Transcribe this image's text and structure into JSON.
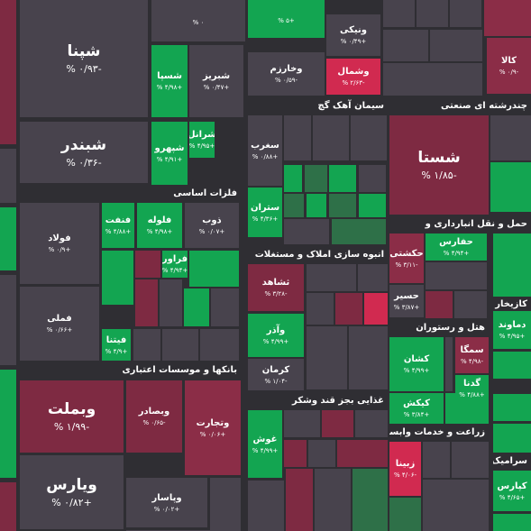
{
  "sectors": [
    {
      "title": "سیمان آهک گچ"
    },
    {
      "title": "چندرشته ای صنعتی"
    },
    {
      "title": "فلزات اساسی"
    },
    {
      "title": "انبوه سازی املاک و مستغلات"
    },
    {
      "title": "بانکها و موسسات اعتباری"
    },
    {
      "title": "غذایی بجز قند وشکر"
    },
    {
      "title": "حمل و نقل انبارداری و"
    },
    {
      "title": "هتل و رستوران"
    },
    {
      "title": "زراعت و خدمات وابسته"
    },
    {
      "title": "کازیخار و"
    },
    {
      "title": "سرامیک"
    }
  ],
  "tiles": [
    {
      "label": "شپنا",
      "change": "-۰/۹۳ %",
      "color": "#48434d"
    },
    {
      "label": "",
      "change": "۰ %",
      "color": "#48434d"
    },
    {
      "label": "",
      "change": "+۵ %",
      "color": "#13a551"
    },
    {
      "label": "ونیکی",
      "change": "+۰/۴۹ %",
      "color": "#48434d"
    },
    {
      "label": "وخارزم",
      "change": "-۰/۵۹ %",
      "color": "#48434d"
    },
    {
      "label": "وشمال",
      "change": "-۲/۶۳ %",
      "color": "#d12a50"
    },
    {
      "label": "کالا",
      "change": "-۰/۹ %",
      "color": "#8b2d47"
    },
    {
      "label": "شبندر",
      "change": "-۰/۳۶ %",
      "color": "#48434d"
    },
    {
      "label": "شسپا",
      "change": "+۴/۹۸ %",
      "color": "#13a551"
    },
    {
      "label": "شبریز",
      "change": "+۰/۴۷ %",
      "color": "#48434d"
    },
    {
      "label": "شپهرو",
      "change": "+۴/۹۱ %",
      "color": "#13a551"
    },
    {
      "label": "شرانل",
      "change": "+۴/۹۵ %",
      "color": "#13a551"
    },
    {
      "label": "سغرب",
      "change": "+۰/۸۸ %",
      "color": "#48434d"
    },
    {
      "label": "ستران",
      "change": "+۴/۳۶ %",
      "color": "#13a551"
    },
    {
      "label": "شستا",
      "change": "-۱/۸۵ %",
      "color": "#7e2a42"
    },
    {
      "label": "فولاد",
      "change": "+۰/۹ %",
      "color": "#48434d"
    },
    {
      "label": "فملی",
      "change": "+۰/۶۶ %",
      "color": "#48434d"
    },
    {
      "label": "فنفت",
      "change": "+۴/۸۸ %",
      "color": "#13a551"
    },
    {
      "label": "فلوله",
      "change": "+۴/۹۸ %",
      "color": "#13a551"
    },
    {
      "label": "ذوب",
      "change": "+۰/۰۷ %",
      "color": "#48434d"
    },
    {
      "label": "فراور",
      "change": "+۴/۹۴ %",
      "color": "#13a551"
    },
    {
      "label": "فیتنا",
      "change": "+۴/۹ %",
      "color": "#13a551"
    },
    {
      "label": "ثشاهد",
      "change": "-۳/۲۸ %",
      "color": "#7e2a42"
    },
    {
      "label": "وآذر",
      "change": "+۴/۹۹ %",
      "color": "#13a551"
    },
    {
      "label": "کرمان",
      "change": "-۱/۰۴ %",
      "color": "#48434d"
    },
    {
      "label": "حفارس",
      "change": "+۴/۹۴ %",
      "color": "#13a551"
    },
    {
      "label": "حکشتی",
      "change": "-۳/۱۱ %",
      "color": "#8b2d47"
    },
    {
      "label": "حسیر",
      "change": "+۳/۸۷ %",
      "color": "#48434d"
    },
    {
      "label": "کشان",
      "change": "+۴/۹۹ %",
      "color": "#13a551"
    },
    {
      "label": "سمگا",
      "change": "-۴/۹۸ %",
      "color": "#8b2d47"
    },
    {
      "label": "گدنا",
      "change": "+۴/۸۸ %",
      "color": "#13a551"
    },
    {
      "label": "کیکش",
      "change": "+۳/۸۴ %",
      "color": "#13a551"
    },
    {
      "label": "زبینا",
      "change": "-۴/۰۶ %",
      "color": "#d12a50"
    },
    {
      "label": "وبملت",
      "change": "-۱/۹۹ %",
      "color": "#7e2a42"
    },
    {
      "label": "ویارس",
      "change": "+۰/۸۲ %",
      "color": "#48434d"
    },
    {
      "label": "وبصادر",
      "change": "-۰/۶۵ %",
      "color": "#7e2a42"
    },
    {
      "label": "وتجارت",
      "change": "+۰/۰۶ %",
      "color": "#8b2d47"
    },
    {
      "label": "وپاسار",
      "change": "+۰/۰۲ %",
      "color": "#48434d"
    },
    {
      "label": "غوش",
      "change": "+۴/۹۹ %",
      "color": "#13a551"
    },
    {
      "label": "دماوند",
      "change": "+۴/۹۵ %",
      "color": "#13a551"
    },
    {
      "label": "کپارس",
      "change": "+۴/۶۵ %",
      "color": "#13a551"
    }
  ]
}
